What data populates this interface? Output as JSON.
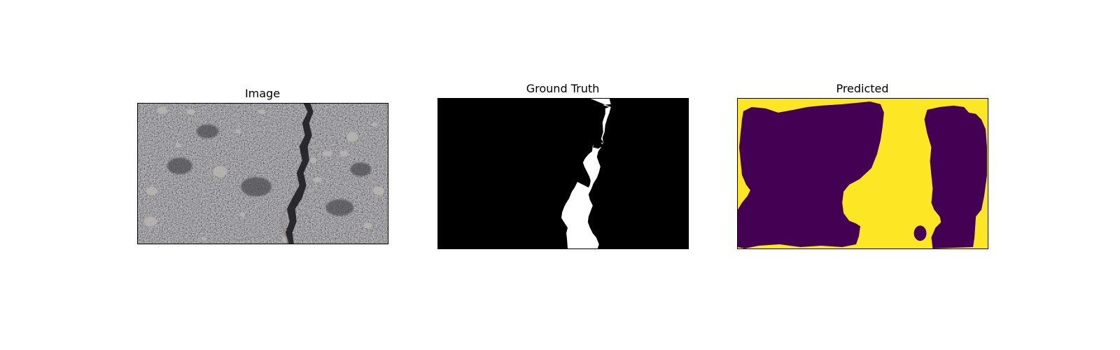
{
  "figure": {
    "panels": [
      {
        "title": "Image"
      },
      {
        "title": "Ground Truth"
      },
      {
        "title": "Predicted"
      }
    ]
  },
  "colors": {
    "asphalt_base": "#5c5c5e",
    "asphalt_dark": "#3e3e42",
    "crack": "#1d1d20",
    "mask_background": "#000000",
    "mask_crack": "#ffffff",
    "pred_positive": "#fde725",
    "pred_negative": "#440154"
  }
}
